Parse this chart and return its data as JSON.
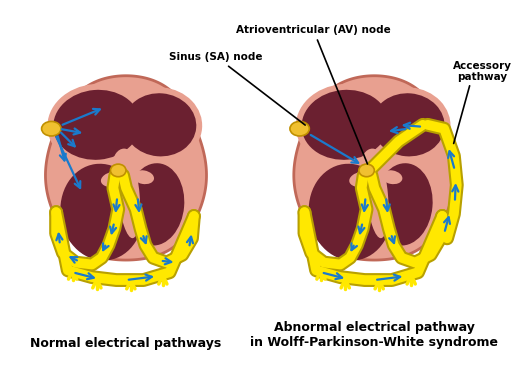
{
  "bg_color": "#ffffff",
  "fig_width": 5.29,
  "fig_height": 3.68,
  "heart_skin_color": "#e8a090",
  "heart_skin_light": "#e8a898",
  "heart_dark_color": "#6b2030",
  "heart_outline_color": "#c06858",
  "yellow_color": "#ffe800",
  "yellow_edge_color": "#b8a000",
  "blue_arrow_color": "#1a7acc",
  "sa_node_color": "#f0c030",
  "sa_node_edge": "#c09000",
  "label1": "Normal electrical pathways",
  "label2": "Abnormal electrical pathway\nin Wolff-Parkinson-White syndrome",
  "ann_sa": "Sinus (SA) node",
  "ann_av": "Atrioventricular (AV) node",
  "ann_acc": "Accessory\npathway",
  "label_fontsize": 9,
  "ann_fontsize": 7.5
}
